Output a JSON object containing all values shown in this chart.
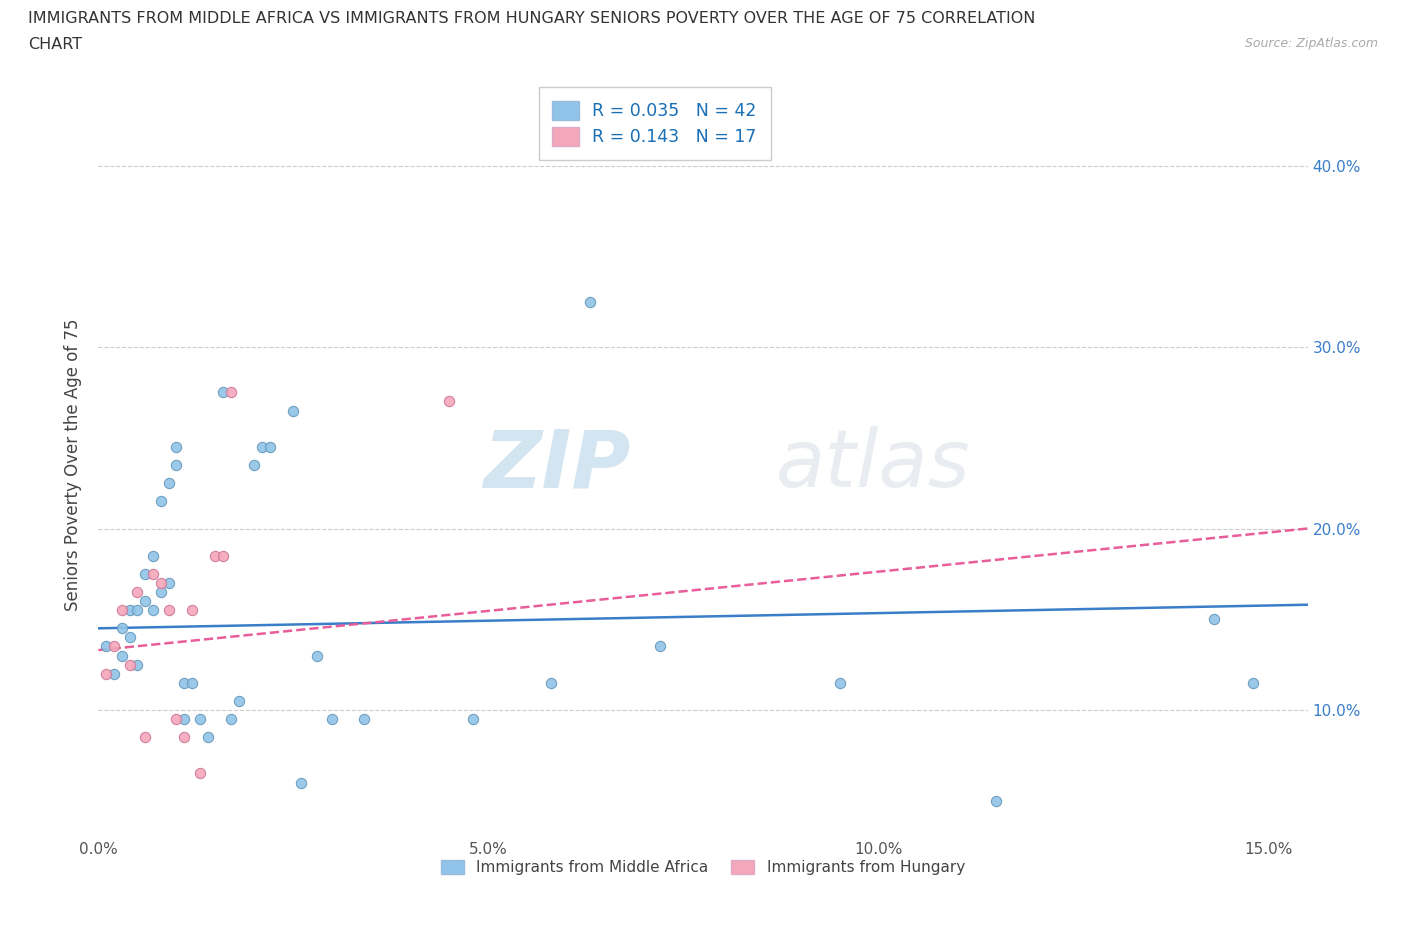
{
  "title_line1": "IMMIGRANTS FROM MIDDLE AFRICA VS IMMIGRANTS FROM HUNGARY SENIORS POVERTY OVER THE AGE OF 75 CORRELATION",
  "title_line2": "CHART",
  "source": "Source: ZipAtlas.com",
  "ylabel": "Seniors Poverty Over the Age of 75",
  "xlim": [
    0.0,
    0.155
  ],
  "ylim": [
    0.03,
    0.44
  ],
  "color_blue": "#90c4e8",
  "color_pink": "#f4a7b9",
  "line_blue": "#3a7dc9",
  "line_pink": "#e85d9a",
  "grid_color": "#cccccc",
  "watermark_zip": "ZIP",
  "watermark_atlas": "atlas",
  "legend_R1": "R = 0.035",
  "legend_N1": "N = 42",
  "legend_R2": "R = 0.143",
  "legend_N2": "N = 17",
  "blue_x": [
    0.001,
    0.002,
    0.003,
    0.003,
    0.004,
    0.004,
    0.005,
    0.005,
    0.006,
    0.006,
    0.007,
    0.007,
    0.008,
    0.008,
    0.009,
    0.01,
    0.01,
    0.011,
    0.011,
    0.012,
    0.013,
    0.014,
    0.016,
    0.017,
    0.018,
    0.02,
    0.021,
    0.022,
    0.025,
    0.026,
    0.028,
    0.03,
    0.034,
    0.048,
    0.058,
    0.063,
    0.072,
    0.095,
    0.115,
    0.143,
    0.148,
    0.009
  ],
  "blue_y": [
    0.135,
    0.12,
    0.13,
    0.145,
    0.14,
    0.155,
    0.125,
    0.155,
    0.16,
    0.175,
    0.155,
    0.185,
    0.165,
    0.215,
    0.17,
    0.235,
    0.245,
    0.115,
    0.095,
    0.115,
    0.095,
    0.085,
    0.275,
    0.095,
    0.105,
    0.235,
    0.245,
    0.245,
    0.265,
    0.06,
    0.13,
    0.095,
    0.095,
    0.095,
    0.115,
    0.325,
    0.135,
    0.115,
    0.05,
    0.15,
    0.115,
    0.225
  ],
  "pink_x": [
    0.001,
    0.002,
    0.003,
    0.004,
    0.005,
    0.006,
    0.007,
    0.008,
    0.009,
    0.01,
    0.011,
    0.012,
    0.013,
    0.015,
    0.016,
    0.017,
    0.045
  ],
  "pink_y": [
    0.12,
    0.135,
    0.155,
    0.125,
    0.165,
    0.085,
    0.175,
    0.17,
    0.155,
    0.095,
    0.085,
    0.155,
    0.065,
    0.185,
    0.185,
    0.275,
    0.27
  ],
  "blue_trend_x": [
    0.0,
    0.155
  ],
  "blue_trend_y": [
    0.145,
    0.158
  ],
  "pink_trend_x": [
    0.0,
    0.155
  ],
  "pink_trend_y": [
    0.133,
    0.2
  ],
  "yticks": [
    0.1,
    0.2,
    0.3,
    0.4
  ],
  "xticks": [
    0.0,
    0.05,
    0.1,
    0.15
  ]
}
